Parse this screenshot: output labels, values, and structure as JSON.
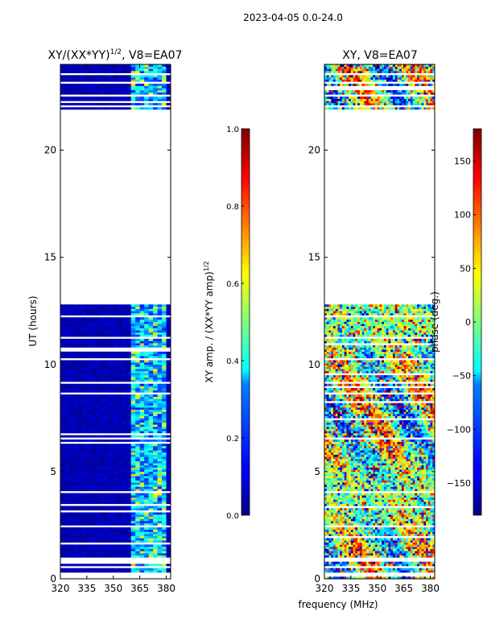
{
  "figure": {
    "suptitle": "2023-04-05 0.0-24.0",
    "xlabel": "frequency (MHz)"
  },
  "chart_data": [
    {
      "type": "heatmap",
      "title_main": "XY/(XX*YY)",
      "title_sup": "1/2",
      "title_tail": ", V8=EA07",
      "ylabel": "UT (hours)",
      "xlim": [
        320,
        382.5
      ],
      "ylim": [
        0,
        24
      ],
      "xticks": [
        "320",
        "335",
        "350",
        "365",
        "380"
      ],
      "xtick_values": [
        320,
        335,
        350,
        365,
        380
      ],
      "yticks": [
        "0",
        "5",
        "10",
        "15",
        "20"
      ],
      "ytick_values": [
        0,
        5,
        10,
        15,
        20
      ],
      "data_ranges_hours": [
        [
          0.0,
          12.8
        ],
        [
          21.9,
          24.0
        ]
      ],
      "blank_rows_hours": [
        0.15,
        0.5,
        0.85,
        2.4,
        4.0,
        6.5,
        8.6,
        9.1,
        10.2,
        11.2,
        12.2,
        22.0,
        22.5,
        23.1,
        23.5
      ],
      "pattern_band_mhz": [
        361,
        379
      ],
      "colorbar": {
        "label_main": "XY amp. / (XX*YY amp)",
        "label_sup": "1/2",
        "vmin": 0.0,
        "vmax": 1.0,
        "ticks": [
          "0.0",
          "0.2",
          "0.4",
          "0.6",
          "0.8",
          "1.0"
        ],
        "tick_values": [
          0.0,
          0.2,
          0.4,
          0.6,
          0.8,
          1.0
        ]
      }
    },
    {
      "type": "heatmap",
      "title": "XY, V8=EA07",
      "xlim": [
        320,
        382.5
      ],
      "ylim": [
        0,
        24
      ],
      "xticks": [
        "320",
        "335",
        "350",
        "365",
        "380"
      ],
      "xtick_values": [
        320,
        335,
        350,
        365,
        380
      ],
      "yticks": [
        "0",
        "5",
        "10",
        "15",
        "20"
      ],
      "ytick_values": [
        0,
        5,
        10,
        15,
        20
      ],
      "data_ranges_hours": [
        [
          0.0,
          12.8
        ],
        [
          21.9,
          24.0
        ]
      ],
      "blank_rows_hours": [
        0.15,
        0.5,
        0.85,
        2.4,
        4.0,
        6.5,
        8.6,
        9.1,
        10.2,
        11.2,
        12.2,
        22.0,
        22.5,
        23.1,
        23.5
      ],
      "colorbar": {
        "label": "phase (deg.)",
        "vmin": -180,
        "vmax": 180,
        "ticks": [
          "−150",
          "−100",
          "−50",
          "0",
          "50",
          "100",
          "150"
        ],
        "tick_values": [
          -150,
          -100,
          -50,
          0,
          50,
          100,
          150
        ]
      }
    }
  ]
}
